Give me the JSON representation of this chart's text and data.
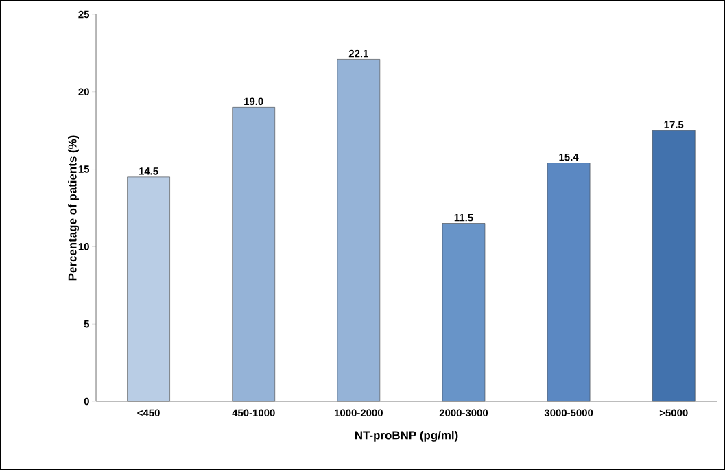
{
  "chart_data": {
    "type": "bar",
    "xlabel": "NT-proBNP (pg/ml)",
    "ylabel": "Percentage of patients (%)",
    "categories": [
      "<450",
      "450-1000",
      "1000-2000",
      "2000-3000",
      "3000-5000",
      ">5000"
    ],
    "values": [
      14.5,
      19.0,
      22.1,
      11.5,
      15.4,
      17.5
    ],
    "value_labels": [
      "14.5",
      "19.0",
      "22.1",
      "11.5",
      "15.4",
      "17.5"
    ],
    "colors": [
      "#b9cde5",
      "#95b3d7",
      "#95b3d7",
      "#6894c8",
      "#5b88c2",
      "#4272ad"
    ],
    "ylim": [
      0,
      25
    ],
    "yticks": [
      0,
      5,
      10,
      15,
      20,
      25
    ]
  }
}
